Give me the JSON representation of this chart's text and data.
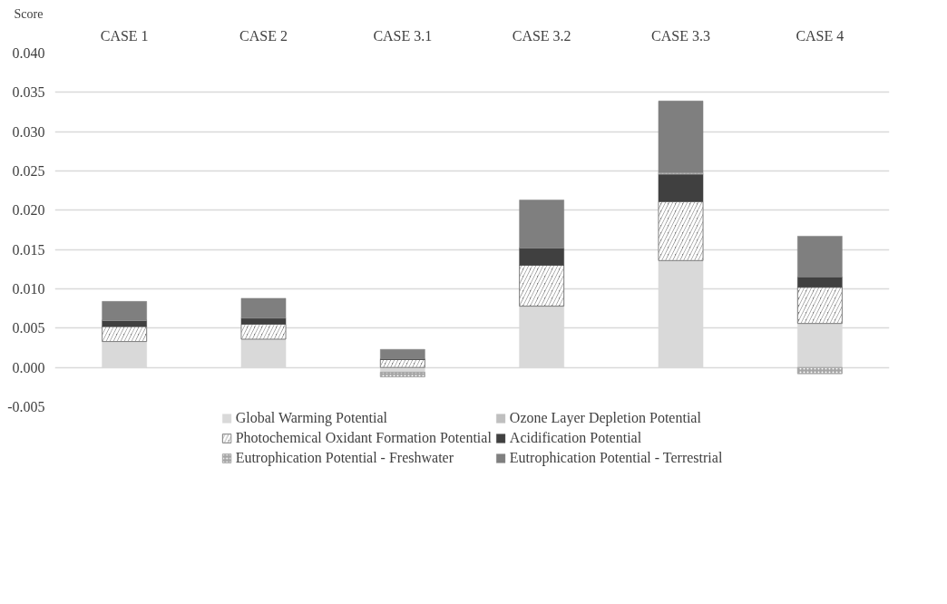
{
  "chart_data": {
    "type": "bar",
    "stacked": true,
    "ylabel": "Score",
    "categories": [
      "CASE 1",
      "CASE 2",
      "CASE 3.1",
      "CASE 3.2",
      "CASE 3.3",
      "CASE 4"
    ],
    "ylim": [
      -0.005,
      0.04
    ],
    "yticks": [
      {
        "value": -0.005,
        "label": "-0.005"
      },
      {
        "value": 0,
        "label": "0.000"
      },
      {
        "value": 0.005,
        "label": "0.005"
      },
      {
        "value": 0.01,
        "label": "0.010"
      },
      {
        "value": 0.015,
        "label": "0.015"
      },
      {
        "value": 0.02,
        "label": "0.020"
      },
      {
        "value": 0.025,
        "label": "0.025"
      },
      {
        "value": 0.03,
        "label": "0.030"
      },
      {
        "value": 0.035,
        "label": "0.035"
      },
      {
        "value": 0.04,
        "label": "0.040"
      }
    ],
    "grid": "y",
    "legend": "bottom",
    "series": [
      {
        "name": "Global Warming Potential",
        "color": "#d9d9d9",
        "values": [
          0.0033,
          0.0036,
          -0.0006,
          0.0078,
          0.0136,
          0.0056
        ]
      },
      {
        "name": "Ozone Layer Depletion Potential",
        "color": "#bfbfbf",
        "values": [
          0,
          0,
          0,
          0,
          0,
          0
        ]
      },
      {
        "name": "Photochemical Oxidant Formation Potential",
        "color": "#808080",
        "values": [
          0.0019,
          0.0019,
          0.001,
          0.0052,
          0.0075,
          0.0046
        ]
      },
      {
        "name": "Acidification Potential",
        "color": "#404040",
        "values": [
          0.0008,
          0.0008,
          0.0001,
          0.0022,
          0.0035,
          0.0013
        ]
      },
      {
        "name": "Eutrophication Potential - Freshwater",
        "color": "#a6a6a6",
        "values": [
          0,
          0,
          -0.0006,
          0,
          0.0002,
          -0.0008
        ]
      },
      {
        "name": "Eutrophication Potential - Terrestrial",
        "color": "#7f7f7f",
        "values": [
          0.0024,
          0.0025,
          0.0012,
          0.0061,
          0.0091,
          0.0052
        ]
      }
    ]
  }
}
